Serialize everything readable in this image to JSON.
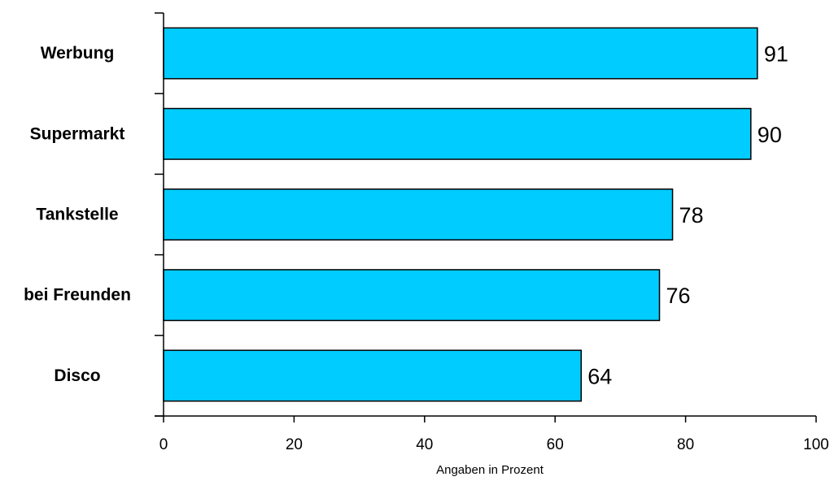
{
  "chart_data": {
    "type": "bar",
    "orientation": "horizontal",
    "categories": [
      "Werbung",
      "Supermarkt",
      "Tankstelle",
      "bei Freunden",
      "Disco"
    ],
    "values": [
      91,
      90,
      78,
      76,
      64
    ],
    "value_labels": [
      "91",
      "90",
      "78",
      "76",
      "64"
    ],
    "xlabel": "Angaben in Prozent",
    "ylabel": "",
    "xlim": [
      0,
      100
    ],
    "xticks": [
      0,
      20,
      40,
      60,
      80,
      100
    ],
    "xtick_labels": [
      "0",
      "20",
      "40",
      "60",
      "80",
      "100"
    ],
    "grid": false,
    "bar_color": "#00CCFF",
    "bar_edge_color": "#000000"
  }
}
